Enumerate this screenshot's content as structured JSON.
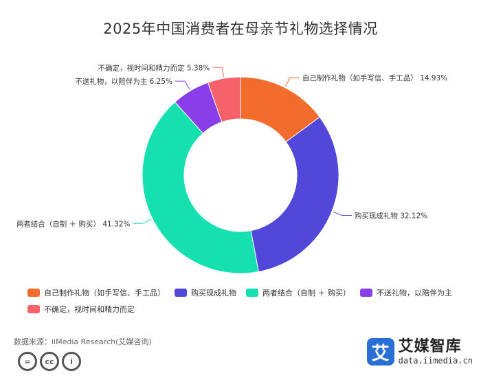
{
  "chart_data": {
    "type": "pie",
    "title": "2025年中国消费者在母亲节礼物选择情况",
    "donut": true,
    "legend_position": "bottom",
    "series": [
      {
        "name": "自己制作礼物（如手写信、手工品）",
        "value": 14.93,
        "label": "14.93%",
        "color": "#f26c2e"
      },
      {
        "name": "购买现成礼物",
        "value": 32.12,
        "label": "32.12%",
        "color": "#5147d9"
      },
      {
        "name": "两者结合（自制 ＋ 购买）",
        "value": 41.32,
        "label": "41.32%",
        "color": "#16e0b0"
      },
      {
        "name": "不送礼物，以陪伴为主",
        "value": 6.25,
        "label": "6.25%",
        "color": "#8a3ee8"
      },
      {
        "name": "不确定，视时间和精力而定",
        "value": 5.38,
        "label": "5.38%",
        "color": "#f5626a"
      }
    ]
  },
  "footer": {
    "source": "数据来源：iiMedia Research(艾媒咨询)",
    "license_icons": [
      "equal-icon",
      "cc-icon",
      "person-icon"
    ],
    "license_glyphs": [
      "=",
      "cc",
      "i"
    ]
  },
  "brand": {
    "logo_char": "艾",
    "name": "艾媒智库",
    "url": "data.iimedia.cn"
  }
}
